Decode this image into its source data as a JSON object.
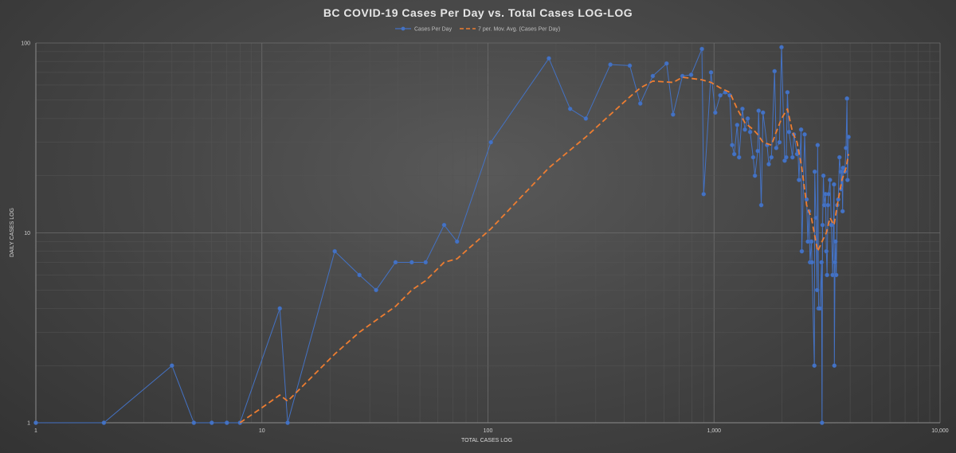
{
  "chart_data": {
    "type": "line",
    "title": "BC COVID-19  Cases  Per  Day  vs.  Total  Cases  LOG-LOG",
    "xlabel": "TOTAL CASES LOG",
    "ylabel": "DAILY CASES LOG",
    "x_scale": "log",
    "y_scale": "log",
    "xlim": [
      1,
      10000
    ],
    "ylim": [
      1,
      100
    ],
    "x_ticks": [
      "1",
      "10",
      "100",
      "1,000",
      "10,000"
    ],
    "y_ticks": [
      "1",
      "10",
      "100"
    ],
    "grid": true,
    "legend_position": "top",
    "series": [
      {
        "name": "Cases Per Day",
        "color": "#4472c4",
        "style": "line-with-markers",
        "points": [
          [
            1,
            1
          ],
          [
            2,
            1
          ],
          [
            4,
            2
          ],
          [
            5,
            1
          ],
          [
            6,
            1
          ],
          [
            7,
            1
          ],
          [
            8,
            1
          ],
          [
            12,
            4
          ],
          [
            13,
            1
          ],
          [
            21,
            8
          ],
          [
            27,
            6
          ],
          [
            32,
            5
          ],
          [
            39,
            7
          ],
          [
            46,
            7
          ],
          [
            53,
            7
          ],
          [
            64,
            11
          ],
          [
            73,
            9
          ],
          [
            103,
            30
          ],
          [
            186,
            83
          ],
          [
            231,
            45
          ],
          [
            271,
            40
          ],
          [
            348,
            77
          ],
          [
            424,
            76
          ],
          [
            472,
            48
          ],
          [
            536,
            67
          ],
          [
            617,
            78
          ],
          [
            659,
            42
          ],
          [
            725,
            67
          ],
          [
            792,
            68
          ],
          [
            884,
            93
          ],
          [
            900,
            16
          ],
          [
            970,
            70
          ],
          [
            1013,
            43
          ],
          [
            1066,
            53
          ],
          [
            1121,
            55
          ],
          [
            1174,
            53
          ],
          [
            1203,
            29
          ],
          [
            1229,
            26
          ],
          [
            1266,
            37
          ],
          [
            1291,
            25
          ],
          [
            1336,
            45
          ],
          [
            1370,
            35
          ],
          [
            1410,
            40
          ],
          [
            1445,
            34
          ],
          [
            1490,
            25
          ],
          [
            1517,
            20
          ],
          [
            1561,
            27
          ],
          [
            1575,
            44
          ],
          [
            1618,
            14
          ],
          [
            1647,
            43
          ],
          [
            1717,
            29
          ],
          [
            1747,
            23
          ],
          [
            1795,
            25
          ],
          [
            1853,
            71
          ],
          [
            1885,
            28
          ],
          [
            1948,
            30
          ],
          [
            1989,
            95
          ],
          [
            2054,
            24
          ],
          [
            2087,
            25
          ],
          [
            2112,
            55
          ],
          [
            2147,
            34
          ],
          [
            2224,
            25
          ],
          [
            2255,
            33
          ],
          [
            2330,
            26
          ],
          [
            2353,
            27
          ],
          [
            2376,
            19
          ],
          [
            2428,
            35
          ],
          [
            2446,
            8
          ],
          [
            2517,
            33
          ],
          [
            2569,
            15
          ],
          [
            2601,
            9
          ],
          [
            2632,
            13
          ],
          [
            2660,
            7
          ],
          [
            2697,
            9
          ],
          [
            2711,
            7
          ],
          [
            2779,
            2
          ],
          [
            2790,
            21
          ],
          [
            2824,
            12
          ],
          [
            2858,
            5
          ],
          [
            2874,
            29
          ],
          [
            2902,
            4
          ],
          [
            2940,
            4
          ],
          [
            2990,
            7
          ],
          [
            3005,
            1
          ],
          [
            3022,
            11
          ],
          [
            3047,
            20
          ],
          [
            3071,
            14
          ],
          [
            3114,
            16
          ],
          [
            3140,
            8
          ],
          [
            3163,
            6
          ],
          [
            3192,
            14
          ],
          [
            3216,
            16
          ],
          [
            3258,
            19
          ],
          [
            3305,
            11
          ],
          [
            3347,
            6
          ],
          [
            3396,
            18
          ],
          [
            3407,
            2
          ],
          [
            3430,
            7
          ],
          [
            3447,
            9
          ],
          [
            3473,
            6
          ],
          [
            3510,
            14
          ],
          [
            3545,
            15
          ],
          [
            3590,
            25
          ],
          [
            3634,
            21
          ],
          [
            3650,
            17
          ],
          [
            3682,
            21
          ],
          [
            3706,
            13
          ],
          [
            3724,
            22
          ],
          [
            3790,
            21
          ],
          [
            3837,
            28
          ],
          [
            3875,
            51
          ],
          [
            3895,
            19
          ],
          [
            3936,
            32
          ]
        ]
      },
      {
        "name": "7 per. Mov. Avg. (Cases Per Day)",
        "color": "#ed7d31",
        "style": "dashed",
        "points": [
          [
            8,
            1
          ],
          [
            10,
            1.2
          ],
          [
            12,
            1.4
          ],
          [
            13,
            1.3
          ],
          [
            21,
            2.3
          ],
          [
            27,
            3.0
          ],
          [
            39,
            4.1
          ],
          [
            46,
            5.0
          ],
          [
            53,
            5.6
          ],
          [
            64,
            7.0
          ],
          [
            73,
            7.3
          ],
          [
            103,
            10.5
          ],
          [
            186,
            22
          ],
          [
            271,
            32
          ],
          [
            348,
            42
          ],
          [
            424,
            52
          ],
          [
            472,
            58
          ],
          [
            536,
            63
          ],
          [
            659,
            62
          ],
          [
            725,
            66
          ],
          [
            884,
            64
          ],
          [
            970,
            62
          ],
          [
            1066,
            58
          ],
          [
            1174,
            55
          ],
          [
            1266,
            45
          ],
          [
            1370,
            38
          ],
          [
            1490,
            35
          ],
          [
            1561,
            33
          ],
          [
            1647,
            30
          ],
          [
            1795,
            29
          ],
          [
            1885,
            34
          ],
          [
            1989,
            40
          ],
          [
            2112,
            45
          ],
          [
            2224,
            34
          ],
          [
            2330,
            30
          ],
          [
            2446,
            22
          ],
          [
            2569,
            14
          ],
          [
            2697,
            12
          ],
          [
            2874,
            8
          ],
          [
            3005,
            9
          ],
          [
            3140,
            10
          ],
          [
            3258,
            12
          ],
          [
            3396,
            11
          ],
          [
            3510,
            14
          ],
          [
            3682,
            19
          ],
          [
            3837,
            22
          ],
          [
            3936,
            26
          ]
        ]
      }
    ]
  }
}
